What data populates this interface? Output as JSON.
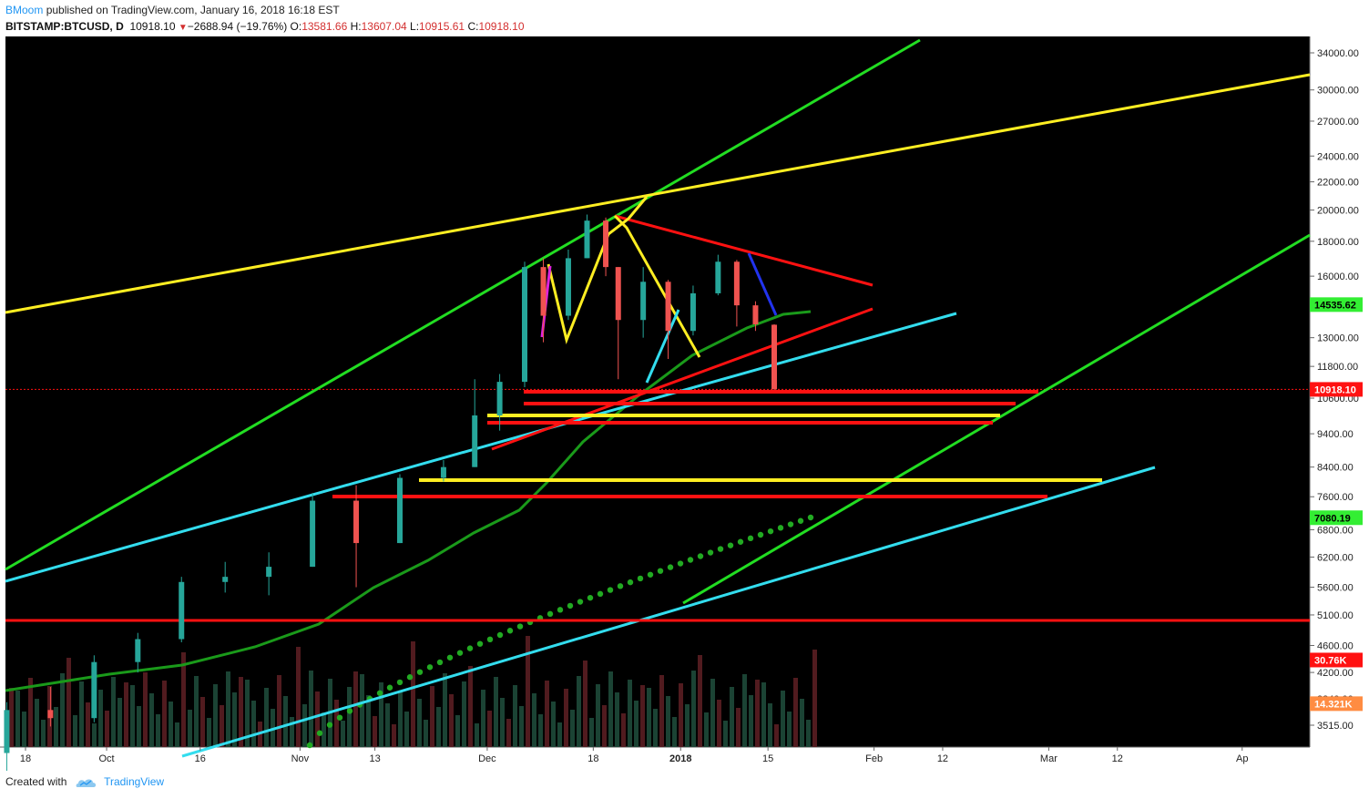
{
  "header": {
    "user": "BMoom",
    "published": "published on TradingView.com, January 16, 2018 16:18 EST",
    "symbol": "BITSTAMP:BTCUSD, D",
    "last": "10918.10",
    "change_arrow": "▼",
    "change": "−2688.94 (−19.76%)",
    "o_label": "O:",
    "o_val": "13581.66",
    "h_label": "H:",
    "h_val": "13607.04",
    "l_label": "L:",
    "l_val": "10915.61",
    "c_label": "C:",
    "c_val": "10918.10"
  },
  "footer": {
    "created_with": "Created with",
    "brand": "TradingView",
    "logo_icon": "tradingview-cloud-icon"
  },
  "colors": {
    "background": "#000000",
    "bull": "#26a69a",
    "bear": "#ef5350",
    "green_line": "#22dd22",
    "yellow_line": "#ffee22",
    "cyan_line": "#33ddee",
    "red_line": "#ff1111",
    "ma_line": "#1a9a1a",
    "dots": "#22aa22"
  },
  "chart_data": {
    "type": "candlestick",
    "symbol": "BITSTAMP:BTCUSD",
    "log_scale": true,
    "y_ticks": [
      34000,
      30000,
      27000,
      24000,
      22000,
      20000,
      18000,
      16000,
      14500,
      13000,
      11800,
      10600,
      9400,
      8400,
      7600,
      6800,
      6200,
      5600,
      5100,
      4600,
      4200,
      3840,
      3515
    ],
    "y_tick_labels": [
      "34000.00",
      "30000.00",
      "27000.00",
      "24000.00",
      "22000.00",
      "20000.00",
      "18000.00",
      "16000.00",
      "14500.00",
      "13000.00",
      "11800.00",
      "10600.00",
      "9400.00",
      "8400.00",
      "7600.00",
      "6800.00",
      "6200.00",
      "5600.00",
      "5100.00",
      "4600.00",
      "4200.00",
      "3840.00",
      "3515.00"
    ],
    "x_labels": [
      "18",
      "Oct",
      "16",
      "Nov",
      "13",
      "Dec",
      "18",
      "2018",
      "15",
      "Feb",
      "12",
      "Mar",
      "12",
      "Ap"
    ],
    "x_label_dates": [
      "2017-09-18",
      "2017-10-01",
      "2017-10-16",
      "2017-11-01",
      "2017-11-13",
      "2017-12-01",
      "2017-12-18",
      "2018-01-01",
      "2018-01-15",
      "2018-02-01",
      "2018-02-12",
      "2018-03-01",
      "2018-03-12",
      "2018-04-01"
    ],
    "price_badges": [
      {
        "label": "14535.62",
        "value": 14535.62,
        "color": "#33ee33"
      },
      {
        "label": "10918.10",
        "value": 10918.1,
        "color": "#ff1111"
      },
      {
        "label": "7080.19",
        "value": 7080.19,
        "color": "#33ee33"
      },
      {
        "label": "30.76K",
        "value": 4380,
        "color": "#ff1111"
      },
      {
        "label": "14.321K",
        "value": 3780,
        "color": "#ff8c42"
      }
    ],
    "candles": [
      {
        "date": "2017-09-15",
        "o": 3200,
        "h": 3800,
        "l": 3000,
        "c": 3700
      },
      {
        "date": "2017-09-22",
        "o": 3700,
        "h": 4000,
        "l": 3500,
        "c": 3600
      },
      {
        "date": "2017-09-29",
        "o": 3600,
        "h": 4450,
        "l": 3550,
        "c": 4350
      },
      {
        "date": "2017-10-06",
        "o": 4350,
        "h": 4800,
        "l": 4200,
        "c": 4700
      },
      {
        "date": "2017-10-13",
        "o": 4700,
        "h": 5800,
        "l": 4650,
        "c": 5700
      },
      {
        "date": "2017-10-20",
        "o": 5700,
        "h": 6100,
        "l": 5500,
        "c": 5800
      },
      {
        "date": "2017-10-27",
        "o": 5800,
        "h": 6300,
        "l": 5450,
        "c": 6000
      },
      {
        "date": "2017-11-03",
        "o": 6000,
        "h": 7700,
        "l": 6000,
        "c": 7500
      },
      {
        "date": "2017-11-10",
        "o": 7500,
        "h": 7900,
        "l": 5600,
        "c": 6500
      },
      {
        "date": "2017-11-17",
        "o": 6500,
        "h": 8200,
        "l": 6500,
        "c": 8100
      },
      {
        "date": "2017-11-24",
        "o": 8100,
        "h": 8600,
        "l": 8000,
        "c": 8400
      },
      {
        "date": "2017-11-29",
        "o": 8400,
        "h": 11300,
        "l": 8400,
        "c": 10000
      },
      {
        "date": "2017-12-03",
        "o": 10000,
        "h": 11500,
        "l": 9500,
        "c": 11200
      },
      {
        "date": "2017-12-07",
        "o": 11200,
        "h": 16800,
        "l": 11000,
        "c": 16500
      },
      {
        "date": "2017-12-10",
        "o": 16500,
        "h": 17000,
        "l": 12800,
        "c": 14000
      },
      {
        "date": "2017-12-14",
        "o": 14000,
        "h": 17500,
        "l": 13800,
        "c": 17000
      },
      {
        "date": "2017-12-17",
        "o": 17000,
        "h": 19700,
        "l": 17000,
        "c": 19300
      },
      {
        "date": "2017-12-20",
        "o": 19300,
        "h": 19500,
        "l": 16000,
        "c": 16500
      },
      {
        "date": "2017-12-22",
        "o": 16500,
        "h": 16500,
        "l": 11300,
        "c": 13800
      },
      {
        "date": "2017-12-26",
        "o": 13800,
        "h": 16500,
        "l": 13000,
        "c": 15700
      },
      {
        "date": "2017-12-30",
        "o": 15700,
        "h": 15800,
        "l": 12100,
        "c": 13300
      },
      {
        "date": "2018-01-03",
        "o": 13300,
        "h": 15500,
        "l": 13100,
        "c": 15100
      },
      {
        "date": "2018-01-07",
        "o": 15100,
        "h": 17200,
        "l": 15000,
        "c": 16800
      },
      {
        "date": "2018-01-10",
        "o": 16800,
        "h": 16900,
        "l": 13500,
        "c": 14500
      },
      {
        "date": "2018-01-13",
        "o": 14500,
        "h": 14700,
        "l": 13300,
        "c": 13600
      },
      {
        "date": "2018-01-16",
        "o": 13581.66,
        "h": 13607.04,
        "l": 10915.61,
        "c": 10918.1
      }
    ]
  }
}
